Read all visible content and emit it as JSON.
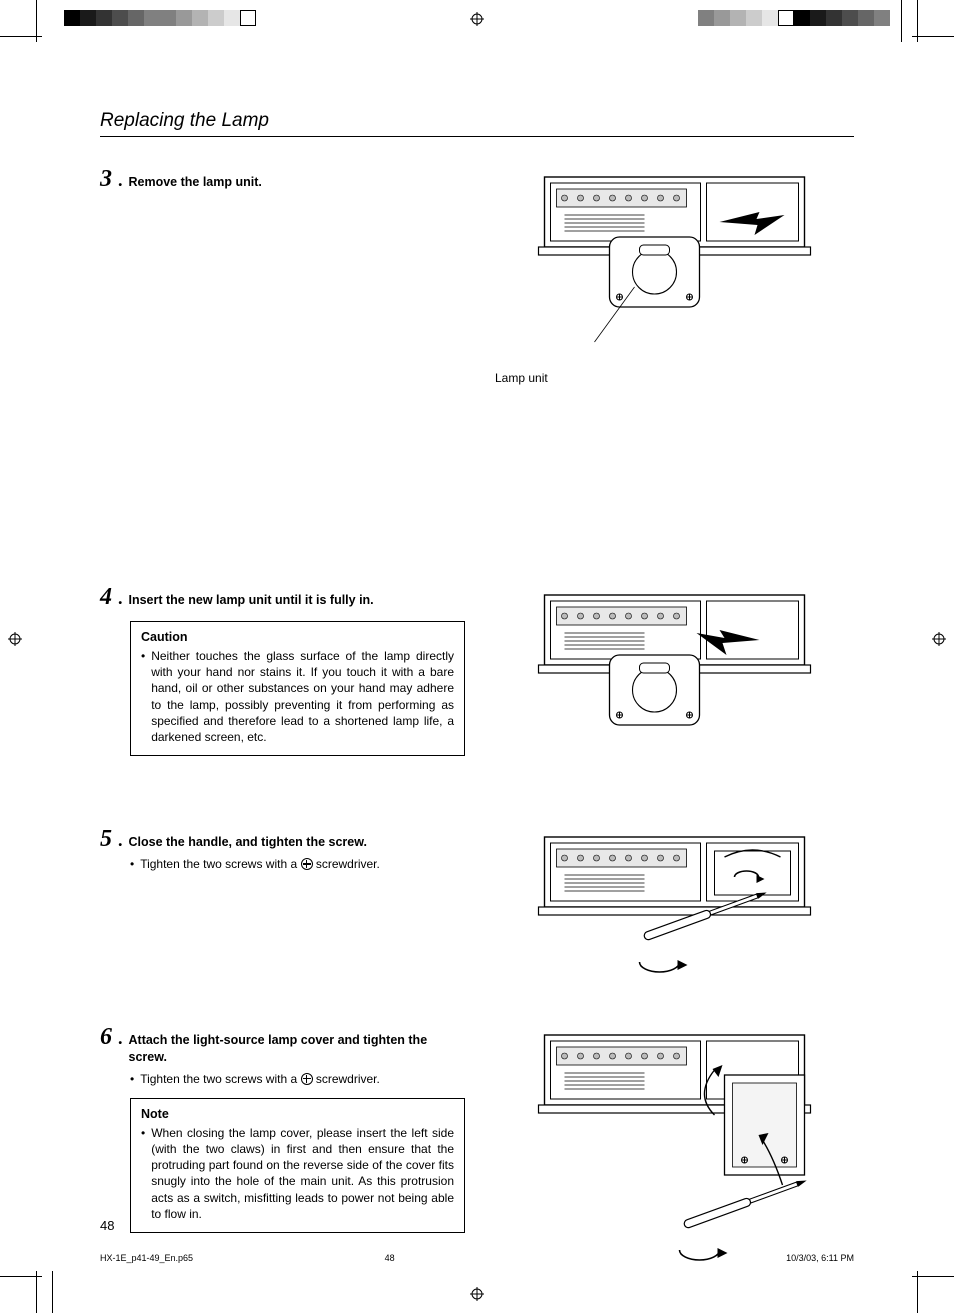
{
  "page": {
    "section_title": "Replacing the Lamp",
    "page_number": "48"
  },
  "colorbar": {
    "left_colors": [
      "#000000",
      "#1a1a1a",
      "#333333",
      "#4d4d4d",
      "#666666",
      "#808080",
      "#808080",
      "#999999",
      "#b3b3b3",
      "#cccccc",
      "#e6e6e6",
      "#ffffff"
    ],
    "right_colors": [
      "#808080",
      "#999999",
      "#b3b3b3",
      "#cccccc",
      "#e6e6e6",
      "#ffffff",
      "#000000",
      "#1a1a1a",
      "#333333",
      "#4d4d4d",
      "#666666",
      "#808080"
    ]
  },
  "steps": [
    {
      "num": "3",
      "title": "Remove the lamp unit.",
      "body_bullets": [],
      "box": null,
      "figure_caption": "Lamp unit",
      "figure_height": 200,
      "gap_after": 200
    },
    {
      "num": "4",
      "title": "Insert the new lamp unit until it is fully in.",
      "body_bullets": [],
      "box": {
        "title": "Caution",
        "text": "Neither touches the glass surface of the lamp directly with your hand nor stains it. If you touch it with a bare hand, oil or other substances on your hand may adhere to the lamp, possibly preventing it from performing as specified and therefore lead to a shortened lamp life, a darkened screen, etc."
      },
      "figure_caption": "",
      "figure_height": 200,
      "gap_after": 42
    },
    {
      "num": "5",
      "title": "Close the handle, and tighten the screw.",
      "body_bullets": [
        "Tighten the two screws with a ⊕ screwdriver."
      ],
      "box": null,
      "figure_caption": "",
      "figure_height": 180,
      "gap_after": 18
    },
    {
      "num": "6",
      "title": "Attach the light-source lamp cover and tighten the screw.",
      "body_bullets": [
        "Tighten the two screws with a ⊕ screwdriver."
      ],
      "box": {
        "title": "Note",
        "text": "When closing the lamp cover, please insert the left side (with the two claws) in first and then ensure that the protruding part found on the reverse side of the cover fits snugly into the hole of the main unit. As this protrusion acts as a switch, misfitting leads to power not being able to flow in."
      },
      "figure_caption": "",
      "figure_height": 270,
      "gap_after": 0
    }
  ],
  "footer": {
    "file": "HX-1E_p41-49_En.p65",
    "page": "48",
    "datetime": "10/3/03, 6:11 PM"
  },
  "diagram_style": {
    "stroke": "#000000",
    "stroke_width": 1.4,
    "fill": "#ffffff",
    "arrow_fill": "#000000"
  }
}
